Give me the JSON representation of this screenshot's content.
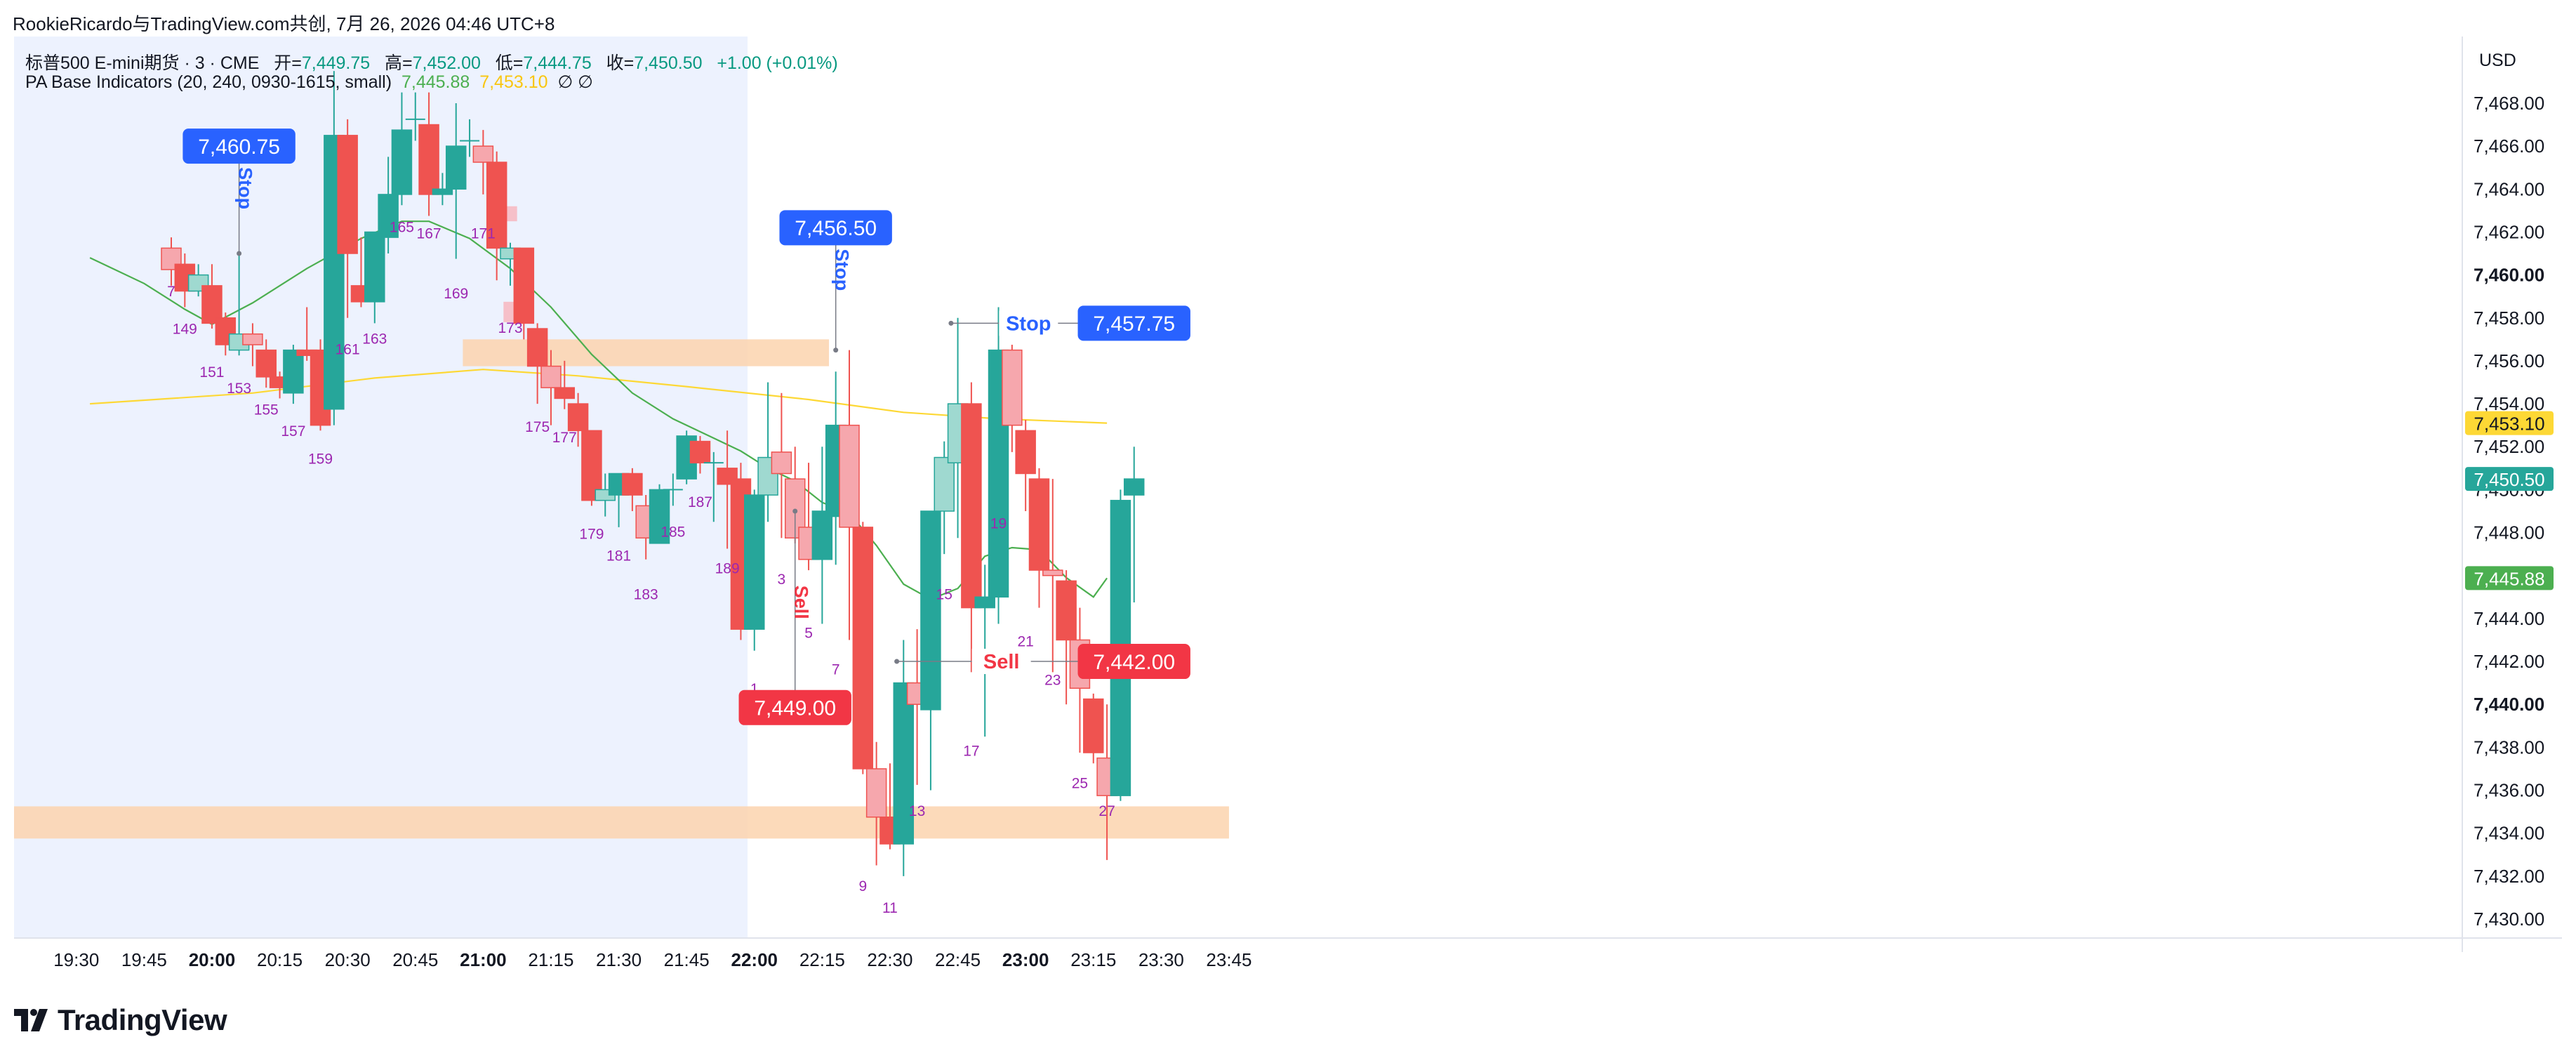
{
  "header": {
    "title": "RookieRicardo与TradingView.com共创, 7月 26, 2026 04:46 UTC+8",
    "symbol": "标普500 E-mini期货 · 3 · CME",
    "open_label": "开=",
    "open": "7,449.75",
    "high_label": "高=",
    "high": "7,452.00",
    "low_label": "低=",
    "low": "7,444.75",
    "close_label": "收=",
    "close": "7,450.50",
    "change": "+1.00 (+0.01%)",
    "indicator_name": "PA Base Indicators (20, 240, 0930-1615, small)",
    "indicator_v1": "7,445.88",
    "indicator_v2": "7,453.10",
    "indicator_sym": "∅  ∅"
  },
  "footer": {
    "logo_text": "TradingView"
  },
  "colors": {
    "up": "#26a69a",
    "down": "#ef5350",
    "ema20": "#4caf50",
    "ema240": "#fdd835",
    "blue": "#2962ff",
    "zone": "#fbd3ae",
    "session_bg": "#edf2fe"
  },
  "chart_data": {
    "type": "candlestick",
    "currency": "USD",
    "ylim": [
      7429,
      7470
    ],
    "y_ticks": [
      "7,430.00",
      "7,432.00",
      "7,434.00",
      "7,436.00",
      "7,438.00",
      "7,440.00",
      "7,442.00",
      "7,444.00",
      "7,446.00",
      "7,448.00",
      "7,450.00",
      "7,452.00",
      "7,454.00",
      "7,456.00",
      "7,458.00",
      "7,460.00",
      "7,462.00",
      "7,464.00",
      "7,466.00",
      "7,468.00"
    ],
    "y_ticks_bold": [
      "7,440.00",
      "7,460.00"
    ],
    "x_ticks": [
      {
        "label": "19:30",
        "bar": -7.0
      },
      {
        "label": "19:45",
        "bar": -2.0
      },
      {
        "label": "20:00",
        "bar": 3.0,
        "bold": true
      },
      {
        "label": "20:15",
        "bar": 8.0
      },
      {
        "label": "20:30",
        "bar": 13.0
      },
      {
        "label": "20:45",
        "bar": 18.0
      },
      {
        "label": "21:00",
        "bar": 23.0,
        "bold": true
      },
      {
        "label": "21:15",
        "bar": 28.0
      },
      {
        "label": "21:30",
        "bar": 33.0
      },
      {
        "label": "21:45",
        "bar": 38.0
      },
      {
        "label": "22:00",
        "bar": 43.0,
        "bold": true
      },
      {
        "label": "22:15",
        "bar": 48.0
      },
      {
        "label": "22:30",
        "bar": 53.0
      },
      {
        "label": "22:45",
        "bar": 58.0
      },
      {
        "label": "23:00",
        "bar": 63.0,
        "bold": true
      },
      {
        "label": "23:15",
        "bar": 68.0
      },
      {
        "label": "23:30",
        "bar": 73.0
      },
      {
        "label": "23:45",
        "bar": 78.0
      }
    ],
    "bars": [
      {
        "o": 7461.25,
        "h": 7461.75,
        "l": 7459.5,
        "c": 7460.25,
        "s": "pd"
      },
      {
        "o": 7460.5,
        "h": 7461.0,
        "l": 7458.5,
        "c": 7459.25,
        "s": "d"
      },
      {
        "o": 7459.25,
        "h": 7460.5,
        "l": 7459.0,
        "c": 7460.0,
        "s": "pu"
      },
      {
        "o": 7459.5,
        "h": 7460.5,
        "l": 7457.5,
        "c": 7457.75,
        "s": "d"
      },
      {
        "o": 7458.0,
        "h": 7458.25,
        "l": 7456.25,
        "c": 7456.75,
        "s": "d"
      },
      {
        "o": 7456.5,
        "h": 7461.0,
        "l": 7456.25,
        "c": 7457.25,
        "s": "pu"
      },
      {
        "o": 7457.25,
        "h": 7457.75,
        "l": 7455.75,
        "c": 7456.75,
        "s": "pd"
      },
      {
        "o": 7456.5,
        "h": 7457.0,
        "l": 7454.75,
        "c": 7455.25,
        "s": "d"
      },
      {
        "o": 7455.25,
        "h": 7455.5,
        "l": 7454.25,
        "c": 7454.75,
        "s": "d"
      },
      {
        "o": 7454.5,
        "h": 7456.75,
        "l": 7454.0,
        "c": 7456.5,
        "s": "u"
      },
      {
        "o": 7456.5,
        "h": 7458.5,
        "l": 7456.0,
        "c": 7456.25,
        "s": "d"
      },
      {
        "o": 7456.5,
        "h": 7457.0,
        "l": 7452.75,
        "c": 7453.0,
        "s": "d"
      },
      {
        "o": 7453.75,
        "h": 7469.5,
        "l": 7453.0,
        "c": 7466.5,
        "s": "u"
      },
      {
        "o": 7466.5,
        "h": 7467.25,
        "l": 7458.0,
        "c": 7461.0,
        "s": "d"
      },
      {
        "o": 7459.5,
        "h": 7461.75,
        "l": 7458.5,
        "c": 7458.75,
        "s": "d"
      },
      {
        "o": 7458.75,
        "h": 7462.0,
        "l": 7457.75,
        "c": 7462.0,
        "s": "u"
      },
      {
        "o": 7461.75,
        "h": 7465.5,
        "l": 7461.0,
        "c": 7463.75,
        "s": "u"
      },
      {
        "o": 7463.75,
        "h": 7468.5,
        "l": 7463.25,
        "c": 7466.75,
        "s": "u"
      },
      {
        "o": 7467.25,
        "h": 7468.5,
        "l": 7466.25,
        "c": 7467.25,
        "s": "u"
      },
      {
        "o": 7467.0,
        "h": 7468.5,
        "l": 7462.75,
        "c": 7463.75,
        "s": "d"
      },
      {
        "o": 7463.75,
        "h": 7464.75,
        "l": 7463.25,
        "c": 7464.0,
        "s": "u"
      },
      {
        "o": 7464.0,
        "h": 7468.0,
        "l": 7460.75,
        "c": 7466.0,
        "s": "u"
      },
      {
        "o": 7466.25,
        "h": 7467.25,
        "l": 7465.5,
        "c": 7466.25,
        "s": "u"
      },
      {
        "o": 7466.0,
        "h": 7466.75,
        "l": 7463.75,
        "c": 7465.25,
        "s": "pd"
      },
      {
        "o": 7465.25,
        "h": 7465.75,
        "l": 7459.75,
        "c": 7461.25,
        "s": "d"
      },
      {
        "o": 7460.75,
        "h": 7461.5,
        "l": 7459.5,
        "c": 7461.25,
        "s": "pu"
      },
      {
        "o": 7461.25,
        "h": 7461.25,
        "l": 7457.0,
        "c": 7457.75,
        "s": "d"
      },
      {
        "o": 7457.5,
        "h": 7457.75,
        "l": 7454.0,
        "c": 7455.75,
        "s": "d"
      },
      {
        "o": 7455.75,
        "h": 7456.5,
        "l": 7453.0,
        "c": 7454.75,
        "s": "pd"
      },
      {
        "o": 7454.75,
        "h": 7456.0,
        "l": 7453.75,
        "c": 7454.25,
        "s": "d"
      },
      {
        "o": 7454.0,
        "h": 7454.5,
        "l": 7452.0,
        "c": 7452.75,
        "s": "d"
      },
      {
        "o": 7452.75,
        "h": 7452.75,
        "l": 7449.25,
        "c": 7449.5,
        "s": "d"
      },
      {
        "o": 7449.5,
        "h": 7450.75,
        "l": 7448.75,
        "c": 7450.0,
        "s": "pu"
      },
      {
        "o": 7449.75,
        "h": 7450.75,
        "l": 7448.25,
        "c": 7450.75,
        "s": "u"
      },
      {
        "o": 7450.75,
        "h": 7451.0,
        "l": 7449.0,
        "c": 7449.75,
        "s": "d"
      },
      {
        "o": 7449.25,
        "h": 7449.75,
        "l": 7446.75,
        "c": 7447.75,
        "s": "pd"
      },
      {
        "o": 7447.5,
        "h": 7450.25,
        "l": 7447.5,
        "c": 7450.0,
        "s": "u"
      },
      {
        "o": 7450.0,
        "h": 7450.75,
        "l": 7449.25,
        "c": 7450.0,
        "s": "u"
      },
      {
        "o": 7450.5,
        "h": 7452.75,
        "l": 7450.25,
        "c": 7452.5,
        "s": "u"
      },
      {
        "o": 7452.25,
        "h": 7452.5,
        "l": 7450.75,
        "c": 7451.25,
        "s": "d"
      },
      {
        "o": 7451.25,
        "h": 7451.75,
        "l": 7448.5,
        "c": 7451.25,
        "s": "u"
      },
      {
        "o": 7451.0,
        "h": 7452.75,
        "l": 7447.25,
        "c": 7450.25,
        "s": "d"
      },
      {
        "o": 7450.5,
        "h": 7451.25,
        "l": 7443.0,
        "c": 7443.5,
        "s": "d"
      },
      {
        "o": 7443.5,
        "h": 7450.0,
        "l": 7442.5,
        "c": 7449.75,
        "s": "u"
      },
      {
        "o": 7449.75,
        "h": 7455.0,
        "l": 7448.5,
        "c": 7451.5,
        "s": "pu"
      },
      {
        "o": 7451.75,
        "h": 7454.5,
        "l": 7447.75,
        "c": 7450.75,
        "s": "pd"
      },
      {
        "o": 7450.5,
        "h": 7452.0,
        "l": 7447.5,
        "c": 7447.75,
        "s": "pd"
      },
      {
        "o": 7448.25,
        "h": 7451.25,
        "l": 7446.25,
        "c": 7446.75,
        "s": "pd"
      },
      {
        "o": 7446.75,
        "h": 7452.0,
        "l": 7443.75,
        "c": 7449.0,
        "s": "u"
      },
      {
        "o": 7448.75,
        "h": 7455.5,
        "l": 7446.5,
        "c": 7453.0,
        "s": "u"
      },
      {
        "o": 7453.0,
        "h": 7456.5,
        "l": 7443.0,
        "c": 7448.25,
        "s": "pd"
      },
      {
        "o": 7448.25,
        "h": 7448.5,
        "l": 7436.75,
        "c": 7437.0,
        "s": "d"
      },
      {
        "o": 7437.0,
        "h": 7438.25,
        "l": 7432.5,
        "c": 7434.75,
        "s": "pd"
      },
      {
        "o": 7434.75,
        "h": 7437.25,
        "l": 7433.25,
        "c": 7433.5,
        "s": "d"
      },
      {
        "o": 7433.5,
        "h": 7443.0,
        "l": 7432.0,
        "c": 7441.0,
        "s": "u"
      },
      {
        "o": 7440.0,
        "h": 7443.5,
        "l": 7436.25,
        "c": 7441.0,
        "s": "pd"
      },
      {
        "o": 7439.75,
        "h": 7449.0,
        "l": 7436.0,
        "c": 7449.0,
        "s": "u"
      },
      {
        "o": 7449.0,
        "h": 7452.25,
        "l": 7447.0,
        "c": 7451.5,
        "s": "pu"
      },
      {
        "o": 7451.25,
        "h": 7458.0,
        "l": 7447.75,
        "c": 7454.0,
        "s": "pu"
      },
      {
        "o": 7454.0,
        "h": 7455.0,
        "l": 7441.5,
        "c": 7444.5,
        "s": "d"
      },
      {
        "o": 7444.5,
        "h": 7446.5,
        "l": 7438.5,
        "c": 7445.0,
        "s": "u"
      },
      {
        "o": 7445.0,
        "h": 7458.5,
        "l": 7443.75,
        "c": 7456.5,
        "s": "u"
      },
      {
        "o": 7456.5,
        "h": 7456.75,
        "l": 7451.75,
        "c": 7453.0,
        "s": "pd"
      },
      {
        "o": 7452.75,
        "h": 7453.25,
        "l": 7449.0,
        "c": 7450.75,
        "s": "d"
      },
      {
        "o": 7450.5,
        "h": 7451.0,
        "l": 7444.5,
        "c": 7446.25,
        "s": "d"
      },
      {
        "o": 7446.25,
        "h": 7450.5,
        "l": 7441.5,
        "c": 7446.0,
        "s": "pd"
      },
      {
        "o": 7445.75,
        "h": 7446.25,
        "l": 7440.0,
        "c": 7443.0,
        "s": "d"
      },
      {
        "o": 7443.0,
        "h": 7444.5,
        "l": 7437.75,
        "c": 7440.75,
        "s": "pd"
      },
      {
        "o": 7440.25,
        "h": 7440.5,
        "l": 7437.25,
        "c": 7437.75,
        "s": "d"
      },
      {
        "o": 7437.5,
        "h": 7440.0,
        "l": 7432.75,
        "c": 7435.75,
        "s": "pd"
      },
      {
        "o": 7435.75,
        "h": 7450.0,
        "l": 7435.5,
        "c": 7449.5,
        "s": "u"
      },
      {
        "o": 7449.75,
        "h": 7452.0,
        "l": 7444.75,
        "c": 7450.5,
        "s": "u"
      }
    ],
    "bar_numbers": [
      {
        "n": "7",
        "bar": 0,
        "y": 7459.0
      },
      {
        "n": "149",
        "bar": 1,
        "y": 7457.25
      },
      {
        "n": "151",
        "bar": 3,
        "y": 7455.25
      },
      {
        "n": "153",
        "bar": 5,
        "y": 7454.5
      },
      {
        "n": "155",
        "bar": 7,
        "y": 7453.5
      },
      {
        "n": "157",
        "bar": 9,
        "y": 7452.5
      },
      {
        "n": "159",
        "bar": 11,
        "y": 7451.2
      },
      {
        "n": "161",
        "bar": 13,
        "y": 7456.3
      },
      {
        "n": "163",
        "bar": 15,
        "y": 7456.8
      },
      {
        "n": "165",
        "bar": 17,
        "y": 7462.0
      },
      {
        "n": "167",
        "bar": 19,
        "y": 7461.7
      },
      {
        "n": "169",
        "bar": 21,
        "y": 7458.9
      },
      {
        "n": "171",
        "bar": 23,
        "y": 7461.7
      },
      {
        "n": "173",
        "bar": 25,
        "y": 7457.3
      },
      {
        "n": "175",
        "bar": 27,
        "y": 7452.7
      },
      {
        "n": "177",
        "bar": 29,
        "y": 7452.2
      },
      {
        "n": "179",
        "bar": 31,
        "y": 7447.7
      },
      {
        "n": "181",
        "bar": 33,
        "y": 7446.7
      },
      {
        "n": "183",
        "bar": 35,
        "y": 7444.9
      },
      {
        "n": "185",
        "bar": 37,
        "y": 7447.8
      },
      {
        "n": "187",
        "bar": 39,
        "y": 7449.2
      },
      {
        "n": "189",
        "bar": 41,
        "y": 7446.1
      },
      {
        "n": "1",
        "bar": 43,
        "y": 7440.5
      },
      {
        "n": "3",
        "bar": 45,
        "y": 7445.6
      },
      {
        "n": "5",
        "bar": 47,
        "y": 7443.1
      },
      {
        "n": "7",
        "bar": 49,
        "y": 7441.4
      },
      {
        "n": "9",
        "bar": 51,
        "y": 7431.3
      },
      {
        "n": "11",
        "bar": 53,
        "y": 7430.3
      },
      {
        "n": "13",
        "bar": 55,
        "y": 7434.8
      },
      {
        "n": "15",
        "bar": 57,
        "y": 7444.9
      },
      {
        "n": "17",
        "bar": 59,
        "y": 7437.6
      },
      {
        "n": "19",
        "bar": 61,
        "y": 7448.2
      },
      {
        "n": "21",
        "bar": 63,
        "y": 7442.7
      },
      {
        "n": "23",
        "bar": 65,
        "y": 7440.9
      },
      {
        "n": "25",
        "bar": 67,
        "y": 7436.1
      },
      {
        "n": "27",
        "bar": 69,
        "y": 7434.8
      }
    ],
    "ema20": [
      [
        -6,
        7460.8
      ],
      [
        -2,
        7459.6
      ],
      [
        1,
        7458.4
      ],
      [
        3,
        7457.7
      ],
      [
        6,
        7458.7
      ],
      [
        10,
        7460.3
      ],
      [
        14,
        7461.7
      ],
      [
        17,
        7462.5
      ],
      [
        19,
        7462.5
      ],
      [
        22,
        7461.7
      ],
      [
        25,
        7460.3
      ],
      [
        28,
        7458.5
      ],
      [
        31,
        7456.3
      ],
      [
        34,
        7454.5
      ],
      [
        37,
        7453.3
      ],
      [
        40,
        7452.4
      ],
      [
        42,
        7451.8
      ],
      [
        44,
        7451.0
      ],
      [
        46,
        7450.4
      ],
      [
        48,
        7449.4
      ],
      [
        50,
        7448.9
      ],
      [
        52,
        7447.4
      ],
      [
        54,
        7445.6
      ],
      [
        56,
        7444.9
      ],
      [
        58,
        7445.4
      ],
      [
        60,
        7446.9
      ],
      [
        62,
        7447.3
      ],
      [
        64,
        7447.2
      ],
      [
        66,
        7445.9
      ],
      [
        68,
        7445.0
      ],
      [
        69,
        7445.88
      ]
    ],
    "ema240": [
      [
        -6,
        7454.0
      ],
      [
        6,
        7454.5
      ],
      [
        15,
        7455.2
      ],
      [
        23,
        7455.6
      ],
      [
        30,
        7455.3
      ],
      [
        38,
        7454.8
      ],
      [
        47,
        7454.2
      ],
      [
        54,
        7453.6
      ],
      [
        61,
        7453.3
      ],
      [
        69,
        7453.1
      ]
    ],
    "zones": [
      {
        "name": "upper-zone",
        "x0": 21.5,
        "x1": 48.5,
        "y0": 7455.75,
        "y1": 7457.0
      },
      {
        "name": "lower-zone",
        "x0": -100,
        "x1": 78,
        "y0": 7433.75,
        "y1": 7435.25
      }
    ],
    "small_highlights": [
      {
        "x0": 23.5,
        "x1": 25.5,
        "y0": 7462.5,
        "y1": 7463.2
      },
      {
        "x0": 24.5,
        "x1": 26.5,
        "y0": 7457.8,
        "y1": 7458.75
      }
    ],
    "annotations": [
      {
        "kind": "stop-vertical",
        "text": "Stop",
        "bar": 5,
        "y": 7461.0,
        "badge": "7,460.75",
        "badge_y": 7466.0
      },
      {
        "kind": "stop-vertical",
        "text": "Stop",
        "bar": 49,
        "y": 7456.5,
        "badge": "7,456.50",
        "badge_y": 7462.2
      },
      {
        "kind": "stop-horizontal",
        "text": "Stop",
        "bar0": 57.5,
        "bar1": 71,
        "y": 7457.75,
        "badge": "7,457.75"
      },
      {
        "kind": "sell-vertical",
        "text": "Sell",
        "bar": 46,
        "y": 7449.0,
        "badge": "7,449.00",
        "badge_y": 7439.85
      },
      {
        "kind": "sell-horizontal",
        "text": "Sell",
        "bar0": 53.5,
        "bar1": 71,
        "y": 7442.0,
        "badge": "7,442.00"
      }
    ],
    "axis_badges": [
      {
        "name": "ema240-value-badge",
        "text": "7,453.10",
        "y": 7453.1,
        "color": "#fdd835",
        "text_color": "#131722"
      },
      {
        "name": "last-price-badge",
        "text": "7,450.50",
        "y": 7450.5,
        "color": "#26a69a",
        "text_color": "#ffffff"
      },
      {
        "name": "ema20-value-badge",
        "text": "7,445.88",
        "y": 7445.88,
        "color": "#4caf50",
        "text_color": "#ffffff"
      }
    ],
    "session_end_bar": 42.5
  }
}
